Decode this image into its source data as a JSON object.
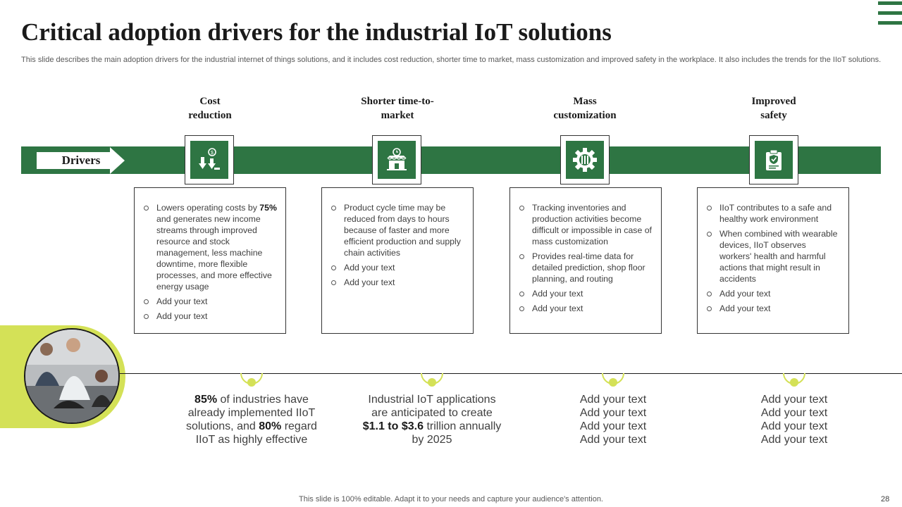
{
  "slide": {
    "title": "Critical adoption drivers for the industrial IoT solutions",
    "subtitle": "This slide describes the main adoption drivers for the industrial internet of things solutions, and it includes cost reduction, shorter time to market, mass customization and improved safety in the workplace. It also includes the trends for the IIoT solutions.",
    "band_label": "Drivers",
    "footer": "This slide is 100% editable. Adapt it to your needs and capture your audience's attention.",
    "page_number": "28"
  },
  "colors": {
    "primary_green": "#2e7543",
    "accent_lime": "#d4e157"
  },
  "drivers": [
    {
      "heading_line1": "Cost",
      "heading_line2": "reduction",
      "icon": "cost-reduction-icon",
      "bullet1_pre": "Lowers operating costs by ",
      "bullet1_bold": "75%",
      "bullet1_post": " and generates new income streams through improved resource and stock management, less machine downtime, more flexible processes, and more effective energy usage",
      "bullets": [
        "Add your text",
        "Add your text"
      ]
    },
    {
      "heading_line1": "Shorter time-to-",
      "heading_line2": "market",
      "icon": "market-store-icon",
      "bullets": [
        "Product cycle time may be reduced from days to hours because of faster and more efficient production and supply chain activities",
        "Add your text",
        "Add your text"
      ]
    },
    {
      "heading_line1": "Mass",
      "heading_line2": "customization",
      "icon": "gear-icon",
      "bullets": [
        "Tracking inventories and production activities become difficult or impossible in case of mass customization",
        "Provides real-time data for detailed prediction, shop floor planning, and routing",
        "Add your text",
        "Add your text"
      ]
    },
    {
      "heading_line1": "Improved",
      "heading_line2": "safety",
      "icon": "safety-shield-icon",
      "bullets": [
        "IIoT contributes to a safe and healthy work environment",
        "When combined with wearable devices, IIoT observes workers' health and harmful actions that might result in accidents",
        "Add your text",
        "Add your text"
      ]
    }
  ],
  "trends": [
    {
      "b1": "85%",
      "t1": " of industries have already implemented IIoT solutions, and ",
      "b2": "80%",
      "t2": " regard IIoT  as highly effective"
    },
    {
      "t1": "Industrial IoT applications are anticipated to create ",
      "b1": "$1.1 to $3.6",
      "t2": " trillion annually  by 2025"
    },
    {
      "lines": [
        "Add your text",
        "Add your text",
        "Add your text",
        "Add your text"
      ]
    },
    {
      "lines": [
        "Add your text",
        "Add your text",
        "Add your text",
        "Add your text"
      ]
    }
  ]
}
